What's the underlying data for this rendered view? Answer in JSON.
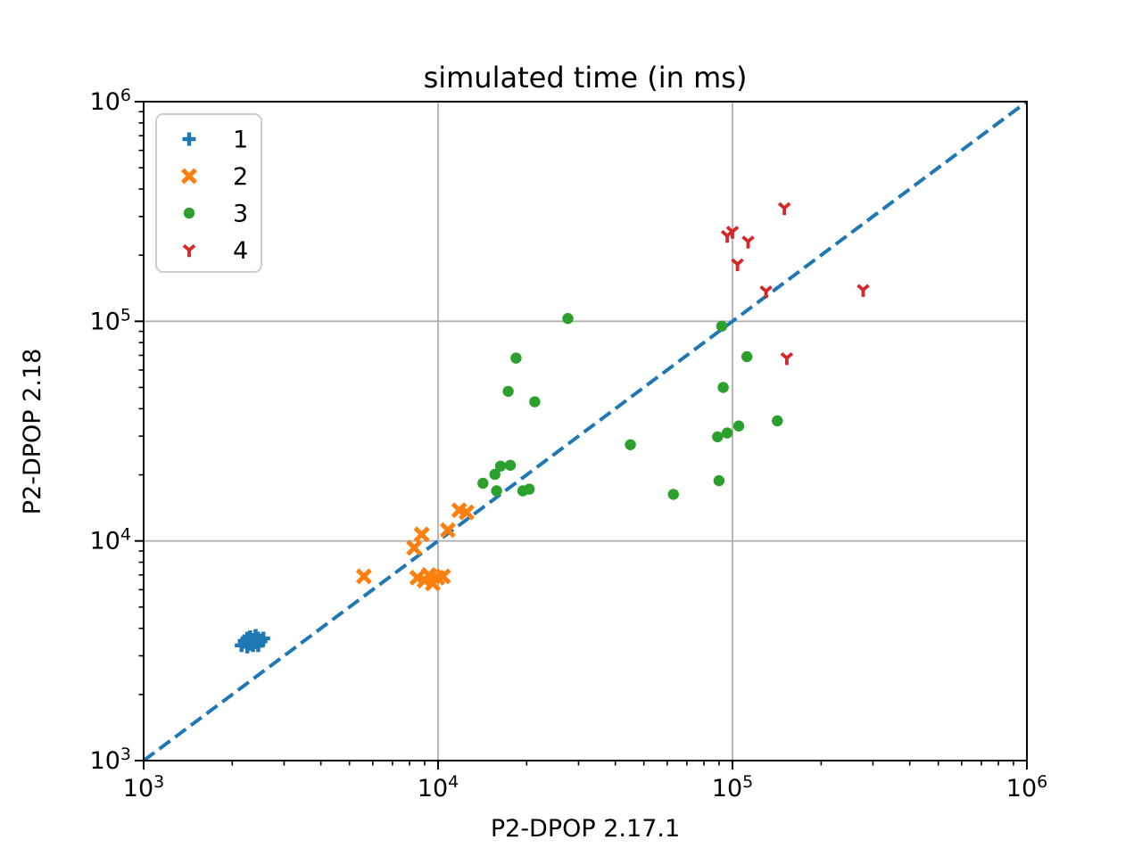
{
  "figure": {
    "title": "simulated time (in ms)",
    "xlabel": "P2-DPOP 2.17.1",
    "ylabel": "P2-DPOP 2.18"
  },
  "legend": {
    "entries": [
      {
        "label": "1",
        "marker": "plus",
        "color": "#1f77b4"
      },
      {
        "label": "2",
        "marker": "x",
        "color": "#ff7f0e"
      },
      {
        "label": "3",
        "marker": "circle",
        "color": "#2ca02c"
      },
      {
        "label": "4",
        "marker": "tri-down",
        "color": "#d62728"
      }
    ]
  },
  "colors": {
    "background": "#ffffff",
    "axes": "#000000",
    "grid": "#b0b0b0",
    "legend_edge": "#cccccc",
    "diagonal": "#1f77b4"
  },
  "chart_data": {
    "type": "scatter",
    "title": "simulated time (in ms)",
    "xlabel": "P2-DPOP 2.17.1",
    "ylabel": "P2-DPOP 2.18",
    "x_scale": "log",
    "y_scale": "log",
    "xlim": [
      1000,
      1000000
    ],
    "ylim": [
      1000,
      1000000
    ],
    "x_tick_exponents": [
      3,
      4,
      5,
      6
    ],
    "y_tick_exponents": [
      3,
      4,
      5,
      6
    ],
    "grid": true,
    "legend_position": "upper left",
    "diagonal": {
      "style": "dashed",
      "color": "#1f77b4",
      "from": [
        1000,
        1000
      ],
      "to": [
        1000000,
        1000000
      ]
    },
    "series": [
      {
        "name": "1",
        "marker": "plus",
        "color": "#1f77b4",
        "points": [
          [
            2150,
            3350
          ],
          [
            2200,
            3500
          ],
          [
            2250,
            3300
          ],
          [
            2250,
            3600
          ],
          [
            2300,
            3400
          ],
          [
            2300,
            3650
          ],
          [
            2350,
            3350
          ],
          [
            2350,
            3550
          ],
          [
            2400,
            3450
          ],
          [
            2400,
            3700
          ],
          [
            2450,
            3350
          ],
          [
            2450,
            3600
          ],
          [
            2500,
            3500
          ],
          [
            2550,
            3600
          ]
        ]
      },
      {
        "name": "2",
        "marker": "x",
        "color": "#ff7f0e",
        "points": [
          [
            5600,
            6900
          ],
          [
            8300,
            9300
          ],
          [
            8800,
            10700
          ],
          [
            10800,
            11200
          ],
          [
            11800,
            13800
          ],
          [
            12500,
            13500
          ],
          [
            8500,
            6800
          ],
          [
            9000,
            6600
          ],
          [
            9300,
            7000
          ],
          [
            9600,
            6400
          ],
          [
            9950,
            6800
          ],
          [
            10400,
            6900
          ]
        ]
      },
      {
        "name": "3",
        "marker": "circle",
        "color": "#2ca02c",
        "points": [
          [
            27600,
            103000
          ],
          [
            18400,
            68000
          ],
          [
            17300,
            48000
          ],
          [
            21300,
            43000
          ],
          [
            16300,
            21900
          ],
          [
            17600,
            22100
          ],
          [
            15600,
            20100
          ],
          [
            14200,
            18300
          ],
          [
            15800,
            16900
          ],
          [
            19400,
            16900
          ],
          [
            20400,
            17200
          ],
          [
            45000,
            27400
          ],
          [
            63000,
            16300
          ],
          [
            90000,
            18800
          ],
          [
            89000,
            29800
          ],
          [
            96000,
            31000
          ],
          [
            105000,
            33400
          ],
          [
            142000,
            35200
          ],
          [
            93000,
            50000
          ],
          [
            92000,
            95000
          ],
          [
            112000,
            69000
          ]
        ]
      },
      {
        "name": "4",
        "marker": "tri-down",
        "color": "#d62728",
        "points": [
          [
            96000,
            245000
          ],
          [
            100000,
            256000
          ],
          [
            113000,
            231000
          ],
          [
            104000,
            182000
          ],
          [
            150000,
            328000
          ],
          [
            130000,
            137000
          ],
          [
            278000,
            139000
          ],
          [
            153000,
            68000
          ]
        ]
      }
    ]
  }
}
